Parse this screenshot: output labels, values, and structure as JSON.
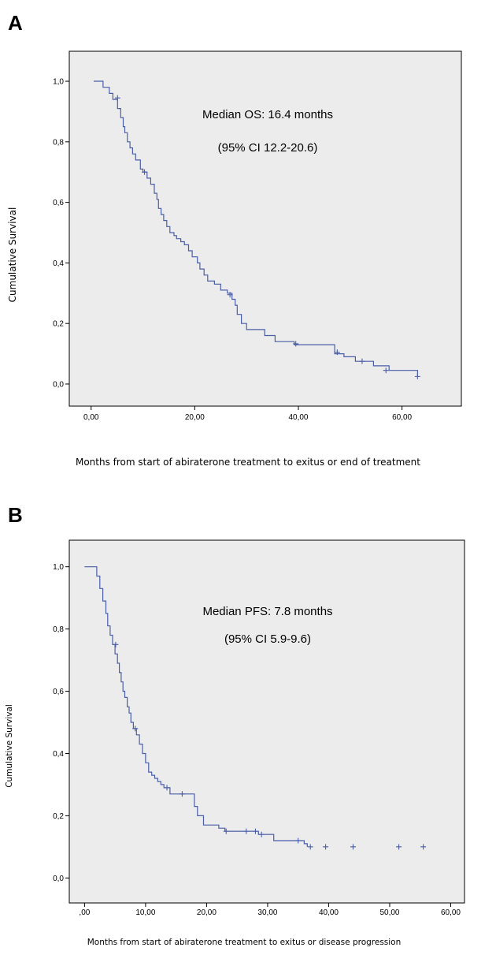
{
  "chart_data": [
    {
      "panel_label": "A",
      "type": "line",
      "step": true,
      "annotation_lines": [
        "Median OS: 16.4 months",
        "(95% CI 12.2-20.6)"
      ],
      "xlabel": "Months from start of abiraterone treatment to exitus or end of treatment",
      "ylabel": "Cumulative Survival",
      "x_ticks": [
        "0,00",
        "20,00",
        "40,00",
        "60,00"
      ],
      "x_tick_values": [
        0,
        20,
        40,
        60
      ],
      "y_ticks": [
        "0,0",
        "0,2",
        "0,4",
        "0,6",
        "0,8",
        "1,0"
      ],
      "y_tick_values": [
        0,
        0.2,
        0.4,
        0.6,
        0.8,
        1.0
      ],
      "xlim": [
        -3,
        71
      ],
      "ylim": [
        -0.06,
        1.06
      ],
      "colors": {
        "line": "#4a5ea8",
        "plot_bg": "#ececec"
      },
      "grid": false,
      "series": [
        {
          "x": [
            0.5,
            2.3,
            3.5,
            4.2,
            5.1,
            5.7,
            6.2,
            6.5,
            7.0,
            7.5,
            8.0,
            8.6,
            9.5,
            10.0,
            10.8,
            11.5,
            12.2,
            12.7,
            13.0,
            13.5,
            14.0,
            14.6,
            15.2,
            16.0,
            16.5,
            17.3,
            18.0,
            18.8,
            19.5,
            20.5,
            21.0,
            21.8,
            22.5,
            23.8,
            25.0,
            26.3,
            27.2,
            27.8,
            28.2,
            29.0,
            30.0,
            33.5,
            35.5,
            39.2,
            47.0,
            48.8,
            51.0,
            54.5,
            57.5,
            63.0
          ],
          "y": [
            1.0,
            0.98,
            0.96,
            0.94,
            0.91,
            0.88,
            0.85,
            0.83,
            0.8,
            0.78,
            0.76,
            0.74,
            0.71,
            0.7,
            0.68,
            0.66,
            0.63,
            0.61,
            0.58,
            0.56,
            0.54,
            0.52,
            0.5,
            0.49,
            0.48,
            0.47,
            0.46,
            0.44,
            0.42,
            0.4,
            0.38,
            0.36,
            0.34,
            0.33,
            0.31,
            0.3,
            0.28,
            0.26,
            0.23,
            0.2,
            0.18,
            0.16,
            0.14,
            0.13,
            0.1,
            0.09,
            0.075,
            0.06,
            0.045,
            0.025
          ],
          "censored": [
            {
              "x": 5.1,
              "y": 0.945
            },
            {
              "x": 10.3,
              "y": 0.7
            },
            {
              "x": 26.8,
              "y": 0.295
            },
            {
              "x": 39.5,
              "y": 0.133
            },
            {
              "x": 47.5,
              "y": 0.105
            },
            {
              "x": 52.3,
              "y": 0.075
            },
            {
              "x": 56.9,
              "y": 0.045
            },
            {
              "x": 63.0,
              "y": 0.025
            }
          ]
        }
      ]
    },
    {
      "panel_label": "B",
      "type": "line",
      "step": true,
      "annotation_lines": [
        "Median PFS: 7.8 months",
        "(95% CI 5.9-9.6)"
      ],
      "xlabel": "Months from start of abiraterone treatment to exitus or disease progression",
      "ylabel": "Cumulative  Survival",
      "x_ticks": [
        ",00",
        "10,00",
        "20,00",
        "30,00",
        "40,00",
        "50,00",
        "60,00"
      ],
      "x_tick_values": [
        0,
        10,
        20,
        30,
        40,
        50,
        60
      ],
      "y_ticks": [
        "0,0",
        "0,2",
        "0,4",
        "0,6",
        "0,8",
        "1,0"
      ],
      "y_tick_values": [
        0,
        0.2,
        0.4,
        0.6,
        0.8,
        1.0
      ],
      "xlim": [
        -2.5,
        62
      ],
      "ylim": [
        -0.06,
        1.06
      ],
      "colors": {
        "line": "#4a5ea8",
        "plot_bg": "#ececec"
      },
      "grid": false,
      "series": [
        {
          "x": [
            0.0,
            2.0,
            2.5,
            3.0,
            3.5,
            3.8,
            4.2,
            4.6,
            5.0,
            5.4,
            5.7,
            6.0,
            6.3,
            6.6,
            7.0,
            7.3,
            7.6,
            8.0,
            8.5,
            9.0,
            9.5,
            10.0,
            10.5,
            11.0,
            11.5,
            12.0,
            12.5,
            13.0,
            14.0,
            15.5,
            18.0,
            18.5,
            19.5,
            22.0,
            23.0,
            28.5,
            31.0,
            36.0,
            36.5
          ],
          "y": [
            1.0,
            0.97,
            0.93,
            0.89,
            0.85,
            0.81,
            0.78,
            0.75,
            0.72,
            0.69,
            0.66,
            0.63,
            0.6,
            0.58,
            0.55,
            0.53,
            0.5,
            0.48,
            0.46,
            0.43,
            0.4,
            0.37,
            0.34,
            0.33,
            0.32,
            0.31,
            0.3,
            0.29,
            0.27,
            0.27,
            0.23,
            0.2,
            0.17,
            0.16,
            0.15,
            0.14,
            0.12,
            0.11,
            0.1
          ],
          "censored": [
            {
              "x": 5.1,
              "y": 0.75
            },
            {
              "x": 8.3,
              "y": 0.48
            },
            {
              "x": 13.5,
              "y": 0.29
            },
            {
              "x": 16.0,
              "y": 0.27
            },
            {
              "x": 23.2,
              "y": 0.15
            },
            {
              "x": 26.5,
              "y": 0.15
            },
            {
              "x": 28.0,
              "y": 0.15
            },
            {
              "x": 29.0,
              "y": 0.14
            },
            {
              "x": 35.0,
              "y": 0.12
            },
            {
              "x": 37.0,
              "y": 0.1
            },
            {
              "x": 39.5,
              "y": 0.1
            },
            {
              "x": 44.0,
              "y": 0.1
            },
            {
              "x": 51.5,
              "y": 0.1
            },
            {
              "x": 55.5,
              "y": 0.1
            }
          ]
        }
      ]
    }
  ]
}
